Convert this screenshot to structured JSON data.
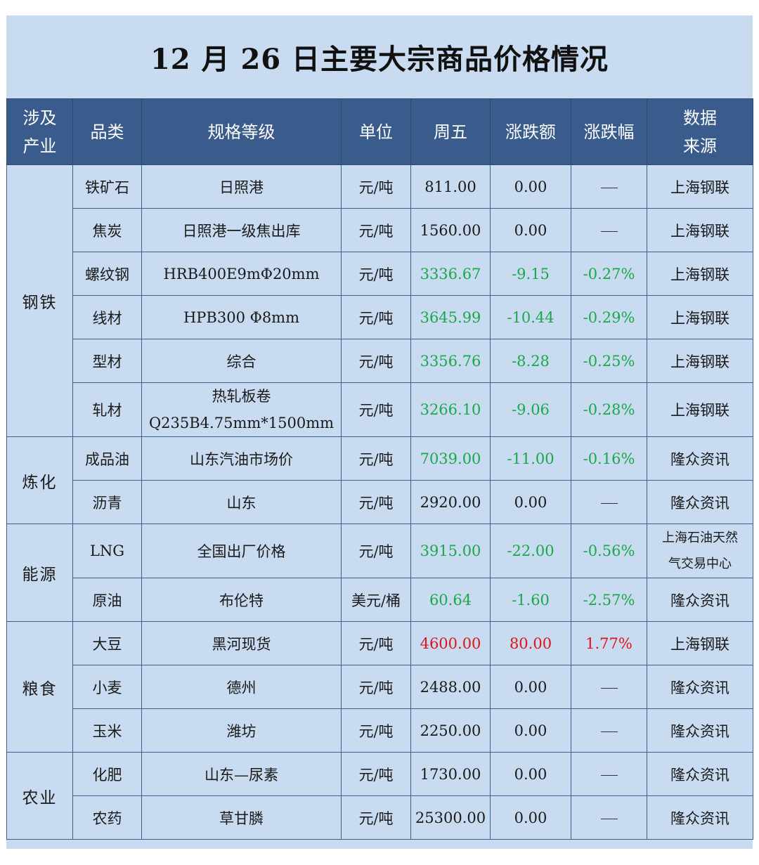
{
  "title": "12 月 26 日主要大宗商品价格情况",
  "colors": {
    "header_bg": "#3a5c8c",
    "cell_bg": "#c8dbf0",
    "down": "#1aa84a",
    "up": "#e0131a"
  },
  "headers": {
    "industry": "涉及\n产业",
    "category": "品类",
    "spec": "规格等级",
    "unit": "单位",
    "price": "周五",
    "change": "涨跌额",
    "pct": "涨跌幅",
    "source": "数据\n来源"
  },
  "rows": [
    {
      "industry": "钢铁",
      "category": "铁矿石",
      "spec": "日照港",
      "unit": "元/吨",
      "price": "811.00",
      "change": "0.00",
      "pct": "—",
      "source": "上海钢联",
      "trend": "flat"
    },
    {
      "category": "焦炭",
      "spec": "日照港一级焦出库",
      "unit": "元/吨",
      "price": "1560.00",
      "change": "0.00",
      "pct": "—",
      "source": "上海钢联",
      "trend": "flat"
    },
    {
      "category": "螺纹钢",
      "spec": "HRB400E9mΦ20mm",
      "unit": "元/吨",
      "price": "3336.67",
      "change": "-9.15",
      "pct": "-0.27%",
      "source": "上海钢联",
      "trend": "down"
    },
    {
      "category": "线材",
      "spec": "HPB300 Φ8mm",
      "unit": "元/吨",
      "price": "3645.99",
      "change": "-10.44",
      "pct": "-0.29%",
      "source": "上海钢联",
      "trend": "down"
    },
    {
      "category": "型材",
      "spec": "综合",
      "unit": "元/吨",
      "price": "3356.76",
      "change": "-8.28",
      "pct": "-0.25%",
      "source": "上海钢联",
      "trend": "down"
    },
    {
      "category": "轧材",
      "spec_line1": "热轧板卷",
      "spec_line2": "Q235B4.75mm*1500mm",
      "unit": "元/吨",
      "price": "3266.10",
      "change": "-9.06",
      "pct": "-0.28%",
      "source": "上海钢联",
      "trend": "down"
    },
    {
      "industry": "炼化",
      "category": "成品油",
      "spec": "山东汽油市场价",
      "unit": "元/吨",
      "price": "7039.00",
      "change": "-11.00",
      "pct": "-0.16%",
      "source": "隆众资讯",
      "trend": "down"
    },
    {
      "category": "沥青",
      "spec": "山东",
      "unit": "元/吨",
      "price": "2920.00",
      "change": "0.00",
      "pct": "—",
      "source": "隆众资讯",
      "trend": "flat"
    },
    {
      "industry": "能源",
      "category": "LNG",
      "spec": "全国出厂价格",
      "unit": "元/吨",
      "price": "3915.00",
      "change": "-22.00",
      "pct": "-0.56%",
      "source_line1": "上海石油天然",
      "source_line2": "气交易中心",
      "trend": "down"
    },
    {
      "category": "原油",
      "spec": "布伦特",
      "unit": "美元/桶",
      "price": "60.64",
      "change": "-1.60",
      "pct": "-2.57%",
      "source": "隆众资讯",
      "trend": "down"
    },
    {
      "industry": "粮食",
      "category": "大豆",
      "spec": "黑河现货",
      "unit": "元/吨",
      "price": "4600.00",
      "change": "80.00",
      "pct": "1.77%",
      "source": "上海钢联",
      "trend": "up"
    },
    {
      "category": "小麦",
      "spec": "德州",
      "unit": "元/吨",
      "price": "2488.00",
      "change": "0.00",
      "pct": "—",
      "source": "隆众资讯",
      "trend": "flat"
    },
    {
      "category": "玉米",
      "spec": "潍坊",
      "unit": "元/吨",
      "price": "2250.00",
      "change": "0.00",
      "pct": "—",
      "source": "隆众资讯",
      "trend": "flat"
    },
    {
      "industry": "农业",
      "category": "化肥",
      "spec": "山东—尿素",
      "unit": "元/吨",
      "price": "1730.00",
      "change": "0.00",
      "pct": "—",
      "source": "隆众资讯",
      "trend": "flat"
    },
    {
      "category": "农药",
      "spec": "草甘膦",
      "unit": "元/吨",
      "price": "25300.00",
      "change": "0.00",
      "pct": "—",
      "source": "隆众资讯",
      "trend": "flat"
    }
  ]
}
